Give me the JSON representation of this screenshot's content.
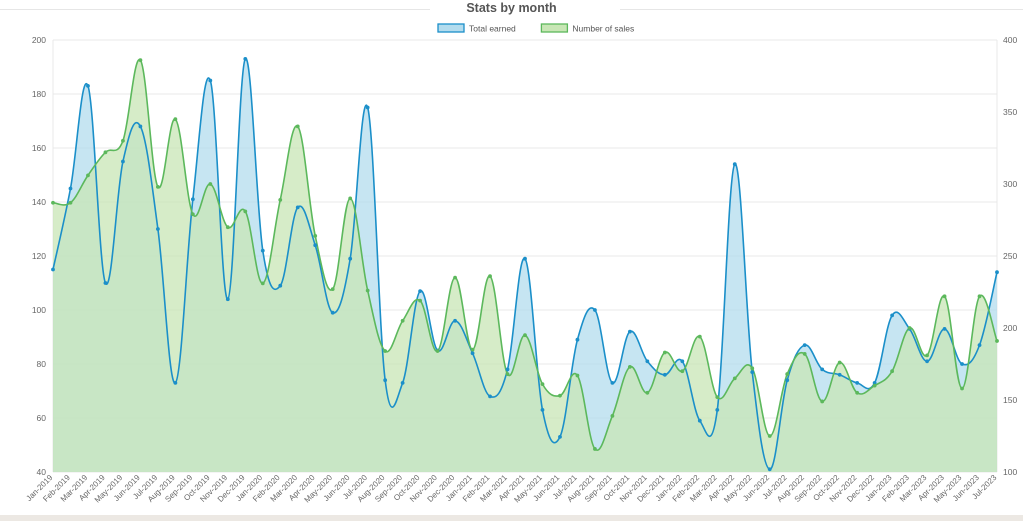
{
  "chart_data": {
    "type": "line",
    "title": "Stats by month",
    "legend_position": "top",
    "grid": true,
    "x": [
      "Jan-2019",
      "Feb-2019",
      "Mar-2019",
      "Apr-2019",
      "May-2019",
      "Jun-2019",
      "Jul-2019",
      "Aug-2019",
      "Sep-2019",
      "Oct-2019",
      "Nov-2019",
      "Dec-2019",
      "Jan-2020",
      "Feb-2020",
      "Mar-2020",
      "Apr-2020",
      "May-2020",
      "Jun-2020",
      "Jul-2020",
      "Aug-2020",
      "Sep-2020",
      "Oct-2020",
      "Nov-2020",
      "Dec-2020",
      "Jan-2021",
      "Feb-2021",
      "Mar-2021",
      "Apr-2021",
      "May-2021",
      "Jun-2021",
      "Jul-2021",
      "Aug-2021",
      "Sep-2021",
      "Oct-2021",
      "Nov-2021",
      "Dec-2021",
      "Jan-2022",
      "Feb-2022",
      "Mar-2022",
      "Apr-2022",
      "May-2022",
      "Jun-2022",
      "Jul-2022",
      "Aug-2022",
      "Sep-2022",
      "Oct-2022",
      "Nov-2022",
      "Dec-2022",
      "Jan-2023",
      "Feb-2023",
      "Mar-2023",
      "Apr-2023",
      "May-2023",
      "Jun-2023",
      "Jul-2023"
    ],
    "y_left": {
      "min": 40,
      "max": 200,
      "ticks": [
        40,
        60,
        80,
        100,
        120,
        140,
        160,
        180,
        200
      ]
    },
    "y_right": {
      "min": 100,
      "max": 400,
      "ticks": [
        100,
        150,
        200,
        250,
        300,
        350,
        400
      ]
    },
    "series": [
      {
        "name": "Total earned",
        "axis": "left",
        "color": "#1b8fc9",
        "fill": "#b3dcee",
        "values": [
          115,
          145,
          183,
          110,
          155,
          168,
          130,
          73,
          141,
          185,
          104,
          193,
          122,
          109,
          138,
          124,
          99,
          119,
          175,
          74,
          73,
          107,
          85,
          96,
          84,
          68,
          78,
          119,
          63,
          53,
          89,
          100,
          73,
          92,
          81,
          76,
          81,
          59,
          63,
          154,
          77,
          41,
          74,
          87,
          78,
          76,
          73,
          73,
          98,
          93,
          81,
          93,
          80,
          87,
          114
        ]
      },
      {
        "name": "Number of sales",
        "axis": "right",
        "color": "#5cb85c",
        "fill": "#c8e6b5",
        "values": [
          287,
          287,
          306,
          322,
          330,
          386,
          298,
          345,
          279,
          300,
          270,
          281,
          231,
          289,
          340,
          264,
          227,
          290,
          226,
          184,
          205,
          219,
          184,
          235,
          185,
          236,
          168,
          195,
          161,
          153,
          167,
          116,
          139,
          173,
          155,
          183,
          170,
          194,
          152,
          165,
          172,
          125,
          168,
          182,
          149,
          176,
          155,
          160,
          170,
          200,
          181,
          222,
          158,
          222,
          191
        ]
      }
    ]
  }
}
